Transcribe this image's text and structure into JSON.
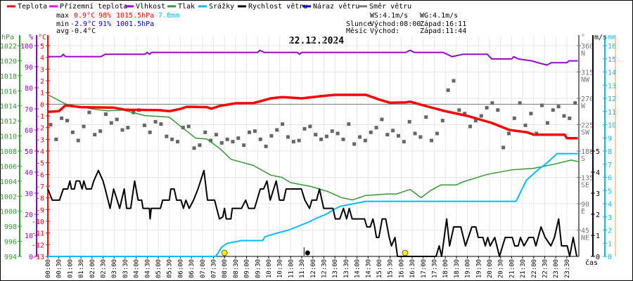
{
  "legend": [
    {
      "label": "Teplota",
      "color": "#ff0000"
    },
    {
      "label": "Přízemní teplota",
      "color": "#ff00ff"
    },
    {
      "label": "Vlhkost",
      "color": "#9900cc"
    },
    {
      "label": "Tlak",
      "color": "#339933"
    },
    {
      "label": "Srážky",
      "color": "#00bbff"
    },
    {
      "label": "Rychlost větru",
      "color": "#000000"
    },
    {
      "label": "Náraz větru",
      "color": "#0000cc"
    },
    {
      "label": "Směr větru",
      "color": "#777777"
    }
  ],
  "stats": {
    "max_label": "max",
    "max_temp": "0.9°C",
    "max_hum": "98%",
    "max_press": "1015.5hPa",
    "rain": "7.8mm",
    "min_label": "min",
    "min_temp": "-2.9°C",
    "min_hum": "91%",
    "min_press": "1001.5hPa",
    "avg_label": "avg",
    "avg_temp": "-0.4°C"
  },
  "astro": {
    "ws": "WS:4.1m/s",
    "wg": "WG:4.1m/s",
    "sun_label": "Slunce",
    "sunrise": "Východ:08:00",
    "sunset": "Západ:16:11",
    "moon_label": "Měsíc",
    "moonrise": "Východ:",
    "moonset": "Západ:11:44"
  },
  "chart_data": {
    "type": "line",
    "title": "22.12.2024",
    "xlabel": "čas",
    "x_range_hours": [
      0,
      24
    ],
    "axes": {
      "pressure": {
        "unit": "hPa",
        "range": [
          994,
          1022
        ],
        "ticks": [
          994,
          996,
          998,
          1000,
          1002,
          1004,
          1006,
          1008,
          1010,
          1012,
          1014,
          1016,
          1018,
          1020,
          1022
        ],
        "color": "#339933"
      },
      "humidity": {
        "unit": "%",
        "range": [
          0,
          100
        ],
        "ticks": [
          0,
          10,
          20,
          30,
          40,
          50,
          60,
          70,
          80,
          90,
          100
        ],
        "color": "#9900cc"
      },
      "temperature": {
        "unit": "°C",
        "range": [
          -13,
          5
        ],
        "ticks": [
          -13,
          -12,
          -11,
          -10,
          -9,
          -8,
          -7,
          -6,
          -5,
          -4,
          -3,
          -2,
          -1,
          0,
          1,
          2,
          3,
          4,
          5
        ],
        "color": "#ff0000"
      },
      "direction": {
        "unit": "°",
        "range": [
          0,
          360
        ],
        "ticks": [
          {
            "v": 45,
            "l": "NE"
          },
          {
            "v": 90,
            "l": "E"
          },
          {
            "v": 135,
            "l": "SE"
          },
          {
            "v": 180,
            "l": "S"
          },
          {
            "v": 225,
            "l": "SW"
          },
          {
            "v": 270,
            "l": "W"
          },
          {
            "v": 315,
            "l": "NW"
          },
          {
            "v": 360,
            "l": "N"
          }
        ],
        "color": "#777777"
      },
      "wind": {
        "unit": "m/s",
        "range": [
          0,
          10
        ],
        "ticks": [
          0,
          1,
          2,
          3,
          4,
          5
        ],
        "color": "#000000"
      },
      "rain": {
        "unit": "mm",
        "range": [
          0,
          16
        ],
        "ticks": [
          0,
          1,
          2,
          3,
          4,
          5,
          6,
          7,
          8,
          9,
          10,
          11,
          12,
          13,
          14,
          15,
          16
        ],
        "color": "#00bbff"
      }
    },
    "time_labels": [
      "00:00",
      "00:30",
      "01:00",
      "01:30",
      "02:00",
      "02:30",
      "03:00",
      "03:30",
      "04:00",
      "04:30",
      "05:00",
      "05:30",
      "06:00",
      "06:30",
      "07:00",
      "07:30",
      "08:00",
      "08:30",
      "09:00",
      "09:30",
      "10:00",
      "10:30",
      "11:00",
      "11:30",
      "12:00",
      "12:30",
      "13:00",
      "13:30",
      "14:00",
      "14:30",
      "15:00",
      "15:30",
      "16:00",
      "16:30",
      "17:00",
      "17:30",
      "18:00",
      "18:30",
      "19:00",
      "19:30",
      "20:00",
      "20:30",
      "21:00",
      "21:30",
      "22:00",
      "22:30",
      "23:00",
      "23:30"
    ],
    "series": {
      "temperature": [
        [
          0,
          -0.66
        ],
        [
          0.5,
          -0.6
        ],
        [
          0.8,
          -0.1
        ],
        [
          1.5,
          -0.25
        ],
        [
          3,
          -0.3
        ],
        [
          3.5,
          -0.48
        ],
        [
          5,
          -0.5
        ],
        [
          5.5,
          -0.6
        ],
        [
          6,
          -0.4
        ],
        [
          6.3,
          -0.22
        ],
        [
          7.2,
          -0.25
        ],
        [
          7.4,
          -0.38
        ],
        [
          7.8,
          -0.14
        ],
        [
          8.5,
          0.08
        ],
        [
          9.3,
          0.1
        ],
        [
          9.6,
          0.24
        ],
        [
          10.1,
          0.5
        ],
        [
          10.6,
          0.6
        ],
        [
          11.5,
          0.5
        ],
        [
          12.4,
          0.7
        ],
        [
          13,
          0.8
        ],
        [
          14.4,
          0.8
        ],
        [
          15,
          0.4
        ],
        [
          15.5,
          0.12
        ],
        [
          16.2,
          0.15
        ],
        [
          16.4,
          0.22
        ],
        [
          17,
          -0.1
        ],
        [
          18,
          -0.6
        ],
        [
          19,
          -1.0
        ],
        [
          20.1,
          -1.6
        ],
        [
          20.9,
          -2.2
        ],
        [
          21.7,
          -2.4
        ],
        [
          22,
          -2.6
        ],
        [
          23.4,
          -2.6
        ],
        [
          23.5,
          -2.9
        ],
        [
          24,
          -2.9
        ]
      ],
      "pressure": [
        [
          0,
          1015.5
        ],
        [
          0.8,
          1014.25
        ],
        [
          2.0,
          1013.6
        ],
        [
          2.7,
          1013.35
        ],
        [
          3.4,
          1013.45
        ],
        [
          4.4,
          1012.7
        ],
        [
          5.5,
          1012.5
        ],
        [
          6,
          1011.3
        ],
        [
          6.7,
          1009.7
        ],
        [
          7.2,
          1009.6
        ],
        [
          7.8,
          1008.3
        ],
        [
          8.3,
          1006.9
        ],
        [
          9.3,
          1006.1
        ],
        [
          10.1,
          1004.8
        ],
        [
          10.6,
          1004.5
        ],
        [
          11,
          1003.8
        ],
        [
          11.9,
          1003.3
        ],
        [
          12.7,
          1002.6
        ],
        [
          13.3,
          1001.8
        ],
        [
          13.8,
          1001.5
        ],
        [
          14.4,
          1002.1
        ],
        [
          15.4,
          1002.3
        ],
        [
          15.8,
          1002.3
        ],
        [
          16.4,
          1002.9
        ],
        [
          16.9,
          1001.8
        ],
        [
          17.3,
          1002.7
        ],
        [
          17.8,
          1003.5
        ],
        [
          18.5,
          1003.5
        ],
        [
          18.8,
          1003.9
        ],
        [
          19.9,
          1004.9
        ],
        [
          21,
          1005.5
        ],
        [
          22,
          1005.7
        ],
        [
          23,
          1006.3
        ],
        [
          23.7,
          1006.8
        ],
        [
          24,
          1006.6
        ]
      ],
      "humidity": [
        [
          0,
          94.8
        ],
        [
          0.6,
          94.8
        ],
        [
          0.7,
          95.9
        ],
        [
          0.8,
          94.8
        ],
        [
          2.4,
          94.8
        ],
        [
          2.6,
          95.9
        ],
        [
          4.4,
          95.9
        ],
        [
          4.5,
          96.8
        ],
        [
          4.6,
          95.9
        ],
        [
          4.7,
          96.8
        ],
        [
          9.5,
          96.8
        ],
        [
          9.6,
          97.8
        ],
        [
          9.8,
          96.8
        ],
        [
          11.3,
          96.8
        ],
        [
          11.4,
          95.9
        ],
        [
          11.5,
          96.8
        ],
        [
          16.2,
          96.8
        ],
        [
          16.4,
          97.8
        ],
        [
          16.6,
          96.8
        ],
        [
          17.9,
          96.8
        ],
        [
          18.3,
          94.8
        ],
        [
          18.8,
          95.9
        ],
        [
          19.9,
          95.9
        ],
        [
          20.1,
          93.7
        ],
        [
          21.0,
          93.7
        ],
        [
          21.1,
          94.8
        ],
        [
          21.3,
          93.7
        ],
        [
          21.9,
          92.8
        ],
        [
          22.2,
          91.9
        ],
        [
          22.6,
          90.8
        ],
        [
          22.8,
          91.9
        ],
        [
          23.5,
          91.9
        ],
        [
          23.6,
          92.8
        ],
        [
          24,
          92.8
        ]
      ],
      "rain": [
        [
          0,
          0
        ],
        [
          7.6,
          0
        ],
        [
          7.71,
          0.27
        ],
        [
          7.87,
          0.7
        ],
        [
          8.13,
          1.0
        ],
        [
          8.77,
          1.2
        ],
        [
          9.73,
          1.2
        ],
        [
          9.83,
          1.5
        ],
        [
          10.36,
          1.76
        ],
        [
          10.9,
          2.0
        ],
        [
          11.74,
          2.56
        ],
        [
          12.17,
          2.9
        ],
        [
          12.6,
          3.2
        ],
        [
          13.0,
          3.6
        ],
        [
          13.23,
          3.8
        ],
        [
          14.4,
          4.18
        ],
        [
          21.2,
          4.18
        ],
        [
          21.67,
          5.78
        ],
        [
          22.2,
          6.58
        ],
        [
          22.6,
          7.1
        ],
        [
          23.05,
          7.8
        ],
        [
          24,
          7.8
        ]
      ],
      "wind_speed": [
        [
          0,
          3.2
        ],
        [
          0.2,
          2.67
        ],
        [
          0.53,
          2.67
        ],
        [
          0.7,
          3.2
        ],
        [
          0.9,
          3.2
        ],
        [
          1.0,
          3.58
        ],
        [
          1.07,
          3.2
        ],
        [
          1.2,
          3.2
        ],
        [
          1.28,
          3.58
        ],
        [
          1.44,
          3.58
        ],
        [
          1.55,
          3.2
        ],
        [
          1.63,
          3.58
        ],
        [
          1.74,
          3.2
        ],
        [
          1.97,
          3.2
        ],
        [
          2.08,
          3.58
        ],
        [
          2.29,
          4.08
        ],
        [
          2.5,
          3.58
        ],
        [
          2.6,
          3.2
        ],
        [
          2.82,
          2.28
        ],
        [
          2.98,
          3.2
        ],
        [
          3.14,
          2.67
        ],
        [
          3.25,
          2.28
        ],
        [
          3.46,
          3.2
        ],
        [
          3.57,
          2.28
        ],
        [
          3.75,
          2.28
        ],
        [
          3.93,
          3.58
        ],
        [
          4.09,
          2.67
        ],
        [
          4.25,
          2.67
        ],
        [
          4.31,
          2.28
        ],
        [
          4.6,
          2.28
        ],
        [
          4.63,
          1.78
        ],
        [
          4.68,
          2.28
        ],
        [
          5.1,
          2.28
        ],
        [
          5.2,
          2.67
        ],
        [
          5.5,
          2.67
        ],
        [
          5.57,
          3.2
        ],
        [
          5.72,
          3.2
        ],
        [
          5.83,
          2.67
        ],
        [
          6.03,
          2.67
        ],
        [
          6.14,
          2.28
        ],
        [
          6.25,
          2.67
        ],
        [
          6.4,
          2.28
        ],
        [
          6.6,
          2.67
        ],
        [
          6.8,
          3.2
        ],
        [
          7.07,
          4.08
        ],
        [
          7.23,
          2.67
        ],
        [
          7.55,
          2.67
        ],
        [
          7.77,
          1.78
        ],
        [
          7.92,
          1.87
        ],
        [
          8.0,
          2.28
        ],
        [
          8.08,
          1.78
        ],
        [
          8.29,
          1.78
        ],
        [
          8.35,
          2.28
        ],
        [
          8.77,
          2.28
        ],
        [
          8.96,
          2.67
        ],
        [
          9.09,
          2.28
        ],
        [
          9.36,
          2.28
        ],
        [
          9.62,
          3.2
        ],
        [
          9.77,
          3.2
        ],
        [
          9.92,
          3.58
        ],
        [
          10.07,
          2.67
        ],
        [
          10.34,
          3.58
        ],
        [
          10.49,
          2.67
        ],
        [
          10.68,
          2.67
        ],
        [
          10.79,
          3.2
        ],
        [
          11.48,
          3.2
        ],
        [
          11.64,
          2.67
        ],
        [
          11.85,
          2.28
        ],
        [
          11.96,
          2.67
        ],
        [
          12.17,
          2.67
        ],
        [
          12.3,
          3.2
        ],
        [
          12.49,
          2.28
        ],
        [
          12.91,
          2.28
        ],
        [
          13.02,
          1.78
        ],
        [
          13.22,
          1.78
        ],
        [
          13.39,
          2.28
        ],
        [
          13.53,
          1.78
        ],
        [
          13.65,
          2.28
        ],
        [
          13.78,
          1.78
        ],
        [
          14.34,
          1.78
        ],
        [
          14.45,
          1.4
        ],
        [
          14.6,
          1.4
        ],
        [
          14.72,
          1.78
        ],
        [
          14.8,
          1.4
        ],
        [
          14.88,
          0.9
        ],
        [
          14.99,
          0.9
        ],
        [
          15.14,
          1.78
        ],
        [
          15.3,
          1.78
        ],
        [
          15.46,
          0.9
        ],
        [
          15.56,
          0.5
        ],
        [
          15.72,
          0.9
        ],
        [
          15.83,
          0
        ],
        [
          17.58,
          0
        ],
        [
          17.72,
          0.5
        ],
        [
          17.83,
          0
        ],
        [
          18.06,
          1.78
        ],
        [
          18.19,
          0.5
        ],
        [
          18.38,
          1.4
        ],
        [
          18.7,
          1.4
        ],
        [
          18.91,
          0.5
        ],
        [
          19.2,
          1.4
        ],
        [
          19.38,
          1.4
        ],
        [
          19.49,
          0.9
        ],
        [
          19.7,
          0.9
        ],
        [
          19.81,
          0.5
        ],
        [
          19.92,
          0.9
        ],
        [
          20.03,
          0.5
        ],
        [
          20.24,
          0.9
        ],
        [
          20.45,
          0
        ],
        [
          20.71,
          0.9
        ],
        [
          21.03,
          0.9
        ],
        [
          21.14,
          0.5
        ],
        [
          21.3,
          0.5
        ],
        [
          21.4,
          0.9
        ],
        [
          21.56,
          0.5
        ],
        [
          21.78,
          0.9
        ],
        [
          21.99,
          0.9
        ],
        [
          22.1,
          0.5
        ],
        [
          22.33,
          1.4
        ],
        [
          22.52,
          0.9
        ],
        [
          22.78,
          0.5
        ],
        [
          22.94,
          0.9
        ],
        [
          23.13,
          1.78
        ],
        [
          23.26,
          0.5
        ],
        [
          23.52,
          0.5
        ],
        [
          23.63,
          0
        ],
        [
          23.79,
          0.9
        ],
        [
          23.95,
          0
        ]
      ],
      "wind_direction": [
        225,
        200,
        236,
        232,
        212,
        198,
        222,
        246,
        208,
        214,
        243,
        228,
        234,
        216,
        220,
        246,
        250,
        224,
        212,
        230,
        226,
        205,
        200,
        196,
        220,
        222,
        185,
        190,
        212,
        198,
        208,
        194,
        200,
        196,
        202,
        190,
        212,
        214,
        200,
        188,
        206,
        216,
        226,
        204,
        196,
        198,
        218,
        222,
        208,
        200,
        205,
        214,
        210,
        200,
        226,
        192,
        204,
        198,
        212,
        220,
        234,
        208,
        215,
        206,
        196,
        230,
        210,
        204,
        238,
        198,
        210,
        232,
        284,
        300,
        250,
        244,
        222,
        232,
        240,
        254,
        262,
        250,
        186,
        210,
        236,
        262,
        224,
        244,
        210,
        258,
        228,
        250,
        256,
        240,
        236,
        262
      ]
    },
    "events": [
      {
        "type": "sunrise",
        "hour": 8.0,
        "color": "#ffee00"
      },
      {
        "type": "moonset",
        "hour": 11.73,
        "color": "#000000"
      },
      {
        "type": "sunset",
        "hour": 16.18,
        "color": "#ffee00"
      }
    ]
  }
}
